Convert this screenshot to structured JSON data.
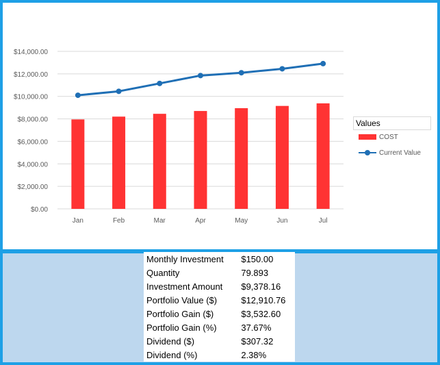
{
  "chart_data": {
    "type": "bar",
    "categories": [
      "Jan",
      "Feb",
      "Mar",
      "Apr",
      "May",
      "Jun",
      "Jul"
    ],
    "series": [
      {
        "name": "COST",
        "type": "bar",
        "color": "#ff3333",
        "values": [
          7950,
          8200,
          8450,
          8700,
          8950,
          9150,
          9378.16
        ]
      },
      {
        "name": "Current Value",
        "type": "line",
        "color": "#1f6fb5",
        "values": [
          10100,
          10450,
          11150,
          11850,
          12100,
          12450,
          12910.76
        ]
      }
    ],
    "yticks": [
      "$0.00",
      "$2,000.00",
      "$4,000.00",
      "$6,000.00",
      "$8,000.00",
      "$10,000.00",
      "$12,000.00",
      "$14,000.00"
    ],
    "ylim": [
      0,
      14000
    ],
    "grid": true,
    "legend_title": "Values",
    "legend_position": "right"
  },
  "summary": {
    "rows": [
      {
        "label": "Monthly Investment",
        "value": "$150.00"
      },
      {
        "label": "Quantity",
        "value": "79.893"
      },
      {
        "label": "Investment Amount",
        "value": "$9,378.16"
      },
      {
        "label": "Portfolio Value ($)",
        "value": "$12,910.76"
      },
      {
        "label": "Portfolio Gain ($)",
        "value": "$3,532.60"
      },
      {
        "label": "Portfolio Gain (%)",
        "value": "37.67%"
      },
      {
        "label": "Dividend ($)",
        "value": "$307.32"
      },
      {
        "label": "Dividend (%)",
        "value": "2.38%"
      }
    ]
  },
  "colors": {
    "border": "#1ea0e6",
    "panel_background": "#bdd7ee"
  }
}
